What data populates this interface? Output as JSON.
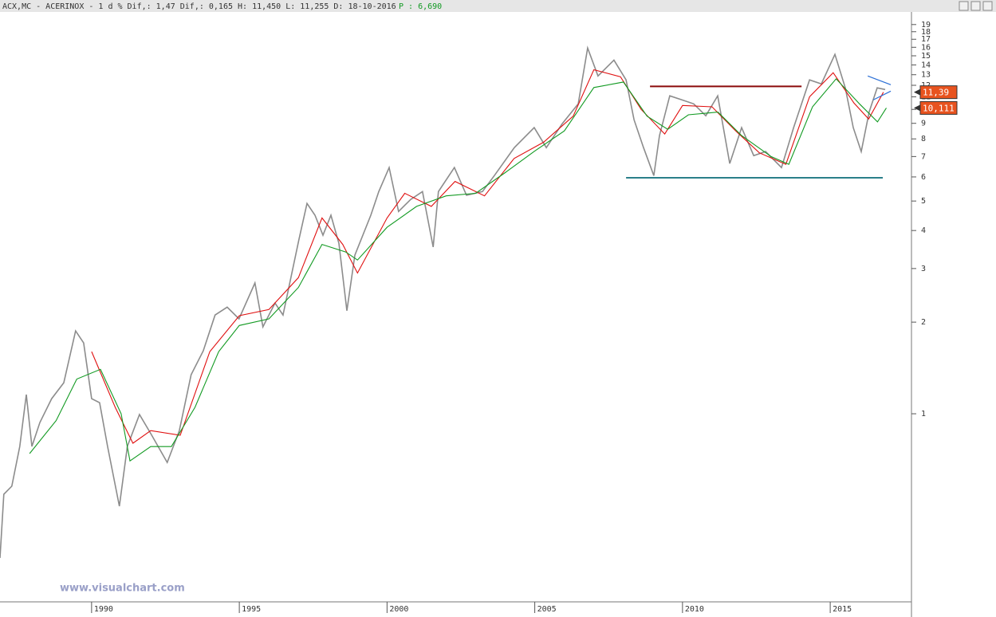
{
  "chart_data": {
    "type": "line",
    "title": "ACX,MC - ACERINOX -  1 d % Dif,: 1,47 Dif,: 0,165 H: 11,450 L: 11,255 D: 18-10-2016",
    "subtitle": "P : 6,690",
    "watermark": "www.visualchart.com",
    "log_scale": true,
    "xlim": [
      1986.9,
      2017.75
    ],
    "xticks": [
      1990,
      1995,
      2000,
      2005,
      2010,
      2015
    ],
    "ylim": [
      0.241,
      20.9
    ],
    "yticks": [
      1,
      2,
      3,
      4,
      5,
      6,
      7,
      8,
      9,
      10,
      11,
      12,
      13,
      14,
      15,
      16,
      17,
      18,
      19
    ],
    "series": [
      {
        "color": "#8c8c8c",
        "x": [
          1986.9,
          1987.03,
          1987.3,
          1987.57,
          1987.79,
          1987.98,
          1988.25,
          1988.65,
          1989.06,
          1989.46,
          1989.73,
          1990.0,
          1990.27,
          1990.54,
          1990.94,
          1991.21,
          1991.62,
          1992.02,
          1992.56,
          1992.97,
          1993.37,
          1993.78,
          1994.18,
          1994.59,
          1994.99,
          1995.53,
          1995.8,
          1996.21,
          1996.48,
          1997.02,
          1997.29,
          1997.56,
          1997.83,
          1998.1,
          1998.37,
          1998.64,
          1998.91,
          1999.45,
          1999.72,
          2000.07,
          2000.39,
          2000.8,
          2001.2,
          2001.56,
          2001.74,
          2002.28,
          2002.69,
          2003.23,
          2003.63,
          2004.31,
          2004.98,
          2005.39,
          2005.93,
          2006.47,
          2006.79,
          2007.14,
          2007.68,
          2008.09,
          2008.36,
          2008.68,
          2009.03,
          2009.22,
          2009.57,
          2009.98,
          2010.38,
          2010.79,
          2011.19,
          2011.6,
          2012.0,
          2012.41,
          2012.81,
          2013.35,
          2013.76,
          2014.3,
          2014.7,
          2015.16,
          2015.51,
          2015.78,
          2016.05,
          2016.32,
          2016.59,
          2016.86
        ],
        "values": [
          0.336,
          0.544,
          0.578,
          0.781,
          1.156,
          0.781,
          0.936,
          1.121,
          1.265,
          1.872,
          1.709,
          1.121,
          1.088,
          0.781,
          0.497,
          0.781,
          0.994,
          0.855,
          0.692,
          0.881,
          1.344,
          1.61,
          2.11,
          2.24,
          2.05,
          2.69,
          1.93,
          2.31,
          2.11,
          3.74,
          4.91,
          4.49,
          3.86,
          4.49,
          3.63,
          2.18,
          3.32,
          4.49,
          5.37,
          6.44,
          4.62,
          5.06,
          5.37,
          3.53,
          5.37,
          6.44,
          5.22,
          5.37,
          6.06,
          7.49,
          8.71,
          7.49,
          8.98,
          10.43,
          15.91,
          12.88,
          14.52,
          12.5,
          9.25,
          7.49,
          6.06,
          8.2,
          11.08,
          10.75,
          10.43,
          9.53,
          11.08,
          6.64,
          8.71,
          7.05,
          7.27,
          6.44,
          8.71,
          12.5,
          12.13,
          15.16,
          11.77,
          8.71,
          7.27,
          9.82,
          11.77,
          11.62
        ]
      },
      {
        "color": "#e01010",
        "x": [
          1990.0,
          1990.8,
          1991.4,
          1992.0,
          1993.0,
          1994.0,
          1995.0,
          1996.0,
          1997.0,
          1997.8,
          1998.5,
          1999.0,
          2000.0,
          2000.6,
          2001.5,
          2002.3,
          2003.3,
          2004.3,
          2005.3,
          2006.3,
          2007.0,
          2007.9,
          2008.6,
          2009.4,
          2010.0,
          2011.0,
          2011.8,
          2012.6,
          2013.5,
          2014.3,
          2015.1,
          2015.8,
          2016.3,
          2016.8
        ],
        "values": [
          1.6,
          1.05,
          0.8,
          0.88,
          0.85,
          1.6,
          2.1,
          2.2,
          2.8,
          4.4,
          3.6,
          2.9,
          4.4,
          5.3,
          4.8,
          5.8,
          5.2,
          6.9,
          7.8,
          9.5,
          13.5,
          12.8,
          10,
          8.3,
          10.3,
          10.2,
          8.5,
          7.2,
          6.6,
          11,
          13.2,
          10.5,
          9.3,
          11.39
        ]
      },
      {
        "color": "#129a22",
        "x": [
          1987.9,
          1988.8,
          1989.5,
          1990.3,
          1991.0,
          1991.3,
          1992.0,
          1992.7,
          1993.5,
          1994.3,
          1995.0,
          1996.0,
          1997.0,
          1997.8,
          1998.6,
          1999.0,
          2000.0,
          2001.0,
          2002.0,
          2003.0,
          2004.0,
          2005.0,
          2006.0,
          2007.0,
          2008.0,
          2008.8,
          2009.5,
          2010.2,
          2011.2,
          2012.0,
          2013.0,
          2013.6,
          2014.4,
          2015.2,
          2016.0,
          2016.6,
          2016.9
        ],
        "values": [
          0.74,
          0.95,
          1.3,
          1.4,
          1.0,
          0.7,
          0.78,
          0.78,
          1.05,
          1.6,
          1.95,
          2.05,
          2.6,
          3.6,
          3.4,
          3.2,
          4.1,
          4.8,
          5.2,
          5.3,
          6.2,
          7.3,
          8.5,
          11.8,
          12.3,
          9.5,
          8.6,
          9.6,
          9.8,
          8.2,
          7,
          6.6,
          10.2,
          12.6,
          10.4,
          9.1,
          10.111
        ]
      }
    ],
    "levels": [
      {
        "value": 11.9,
        "x": [
          2008.9,
          2014.03
        ],
        "color": "#8b0a0a"
      },
      {
        "value": 5.96,
        "x": [
          2008.09,
          2016.78
        ],
        "color": "#2a7f8a"
      }
    ],
    "trend_lines": [
      {
        "x": [
          2016.27,
          2017.05
        ],
        "y": [
          12.88,
          12.05
        ],
        "color": "#2b6fd6"
      },
      {
        "x": [
          2016.46,
          2017.05
        ],
        "y": [
          10.75,
          11.48
        ],
        "color": "#2b6fd6"
      }
    ],
    "last_values": [
      {
        "value": 11.39,
        "label": "11,39",
        "color": "#e8531f"
      },
      {
        "value": 10.111,
        "label": "10,111",
        "color": "#e8531f"
      }
    ]
  }
}
